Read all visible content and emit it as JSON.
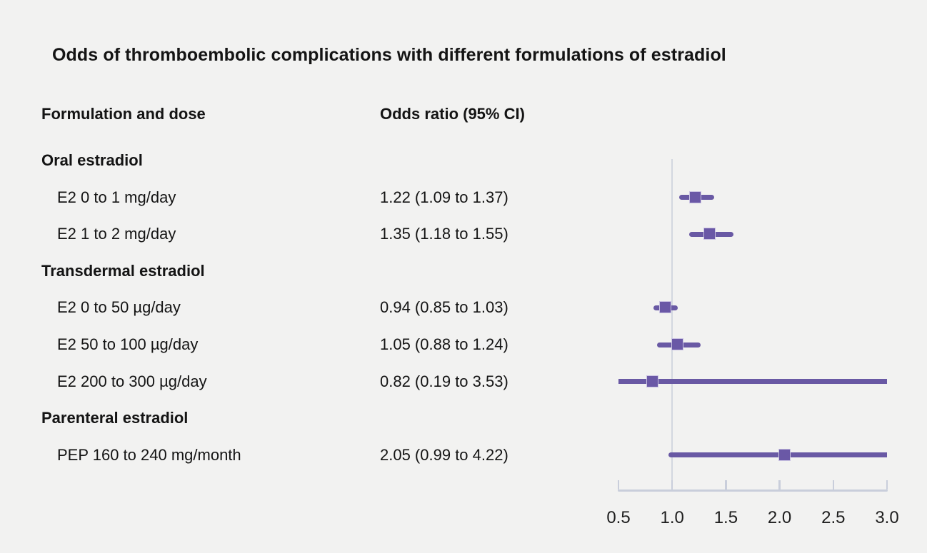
{
  "figure": {
    "title": "Odds of thromboembolic complications with different formulations of estradiol"
  },
  "chart_data": {
    "type": "forest",
    "title": "Odds of thromboembolic complications with different formulations of estradiol",
    "col1_header": "Formulation and dose",
    "col2_header": "Odds ratio (95% CI)",
    "axis": {
      "min": 0.5,
      "max": 3.0,
      "tick_labels": [
        "0.5",
        "1.0",
        "1.5",
        "2.0",
        "2.5",
        "3.0"
      ],
      "tick_values": [
        0.5,
        1.0,
        1.5,
        2.0,
        2.5,
        3.0
      ],
      "reference_line": 1.0
    },
    "rows": [
      {
        "kind": "group",
        "label": "Oral estradiol"
      },
      {
        "kind": "item",
        "label": "E2 0 to 1 mg/day",
        "or_text": "1.22 (1.09 to 1.37)",
        "or": 1.22,
        "ci_low": 1.09,
        "ci_high": 1.37
      },
      {
        "kind": "item",
        "label": "E2 1 to 2 mg/day",
        "or_text": "1.35 (1.18 to 1.55)",
        "or": 1.35,
        "ci_low": 1.18,
        "ci_high": 1.55
      },
      {
        "kind": "group",
        "label": "Transdermal estradiol"
      },
      {
        "kind": "item",
        "label": "E2 0 to 50 µg/day",
        "or_text": "0.94 (0.85 to 1.03)",
        "or": 0.94,
        "ci_low": 0.85,
        "ci_high": 1.03
      },
      {
        "kind": "item",
        "label": "E2 50 to 100 µg/day",
        "or_text": "1.05 (0.88 to 1.24)",
        "or": 1.05,
        "ci_low": 0.88,
        "ci_high": 1.24
      },
      {
        "kind": "item",
        "label": "E2 200 to 300 µg/day",
        "or_text": "0.82 (0.19 to 3.53)",
        "or": 0.82,
        "ci_low": 0.19,
        "ci_high": 3.53
      },
      {
        "kind": "group",
        "label": "Parenteral estradiol"
      },
      {
        "kind": "item",
        "label": "PEP 160 to 240 mg/month",
        "or_text": "2.05 (0.99 to 4.22)",
        "or": 2.05,
        "ci_low": 0.99,
        "ci_high": 4.22
      }
    ],
    "colors": {
      "marker": "#6a58a6",
      "marker_border": "#c9c2e2",
      "ci": "#6959a4",
      "axis": "#c9cedb",
      "reference": "#d3d7e0",
      "background": "#f2f2f1",
      "text": "#141414"
    }
  }
}
